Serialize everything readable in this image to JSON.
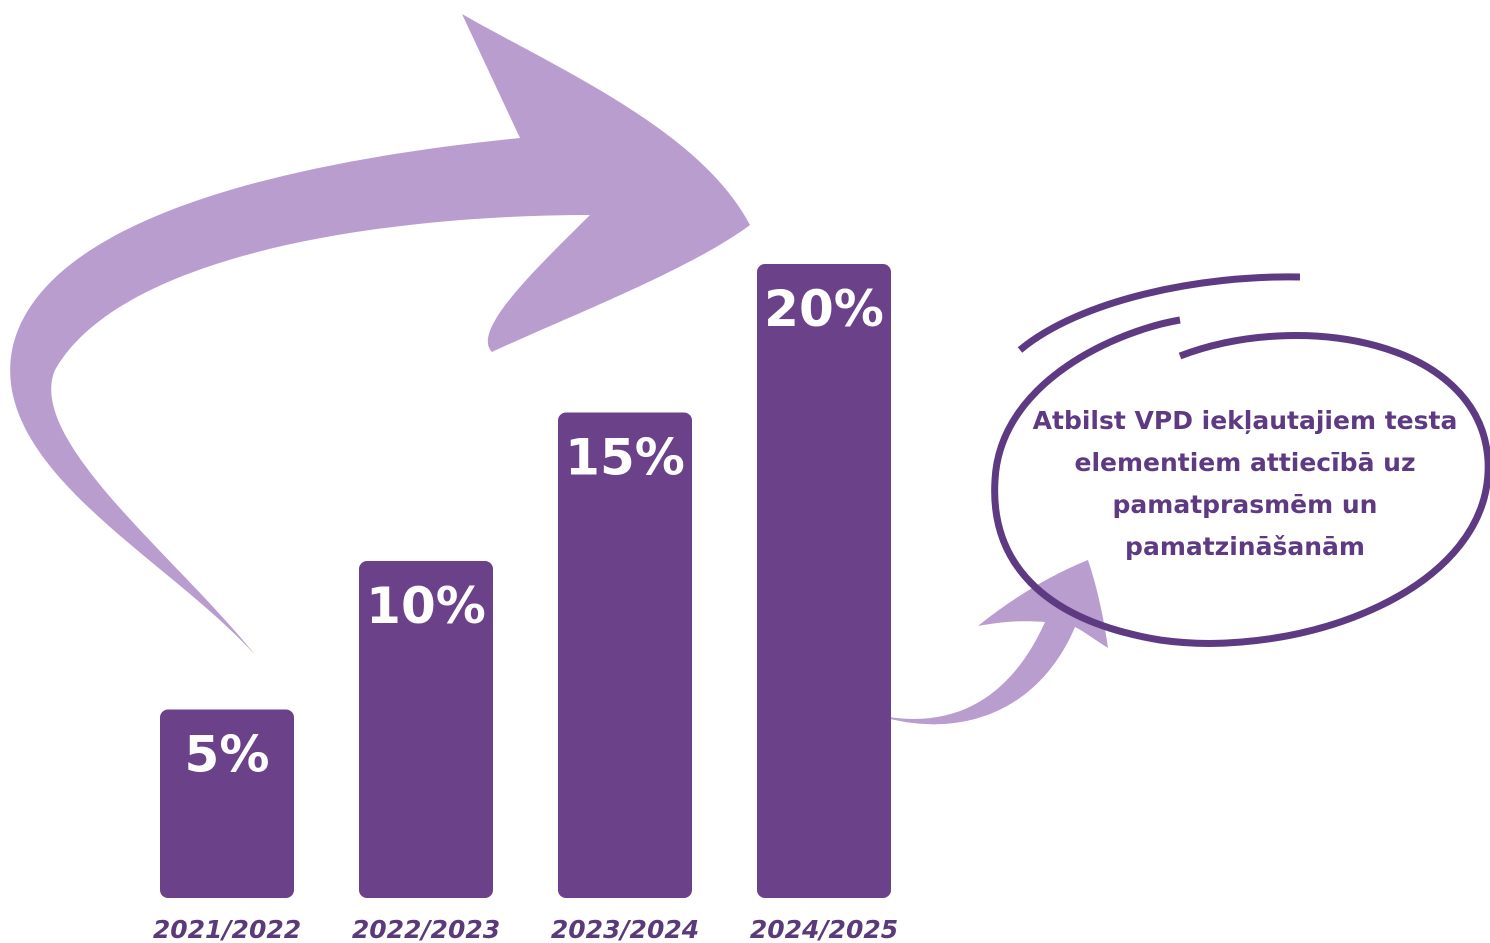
{
  "chart_data": {
    "type": "bar",
    "categories": [
      "2021/2022",
      "2022/2023",
      "2023/2024",
      "2024/2025"
    ],
    "values": [
      5,
      10,
      15,
      20
    ],
    "value_labels": [
      "5%",
      "10%",
      "15%",
      "20%"
    ],
    "color": "#6b4189",
    "annotation": "Atbilst VPD iekļautajiem testa elementiem attiecībā uz pamatprasmēm un pamatzināšanām"
  }
}
